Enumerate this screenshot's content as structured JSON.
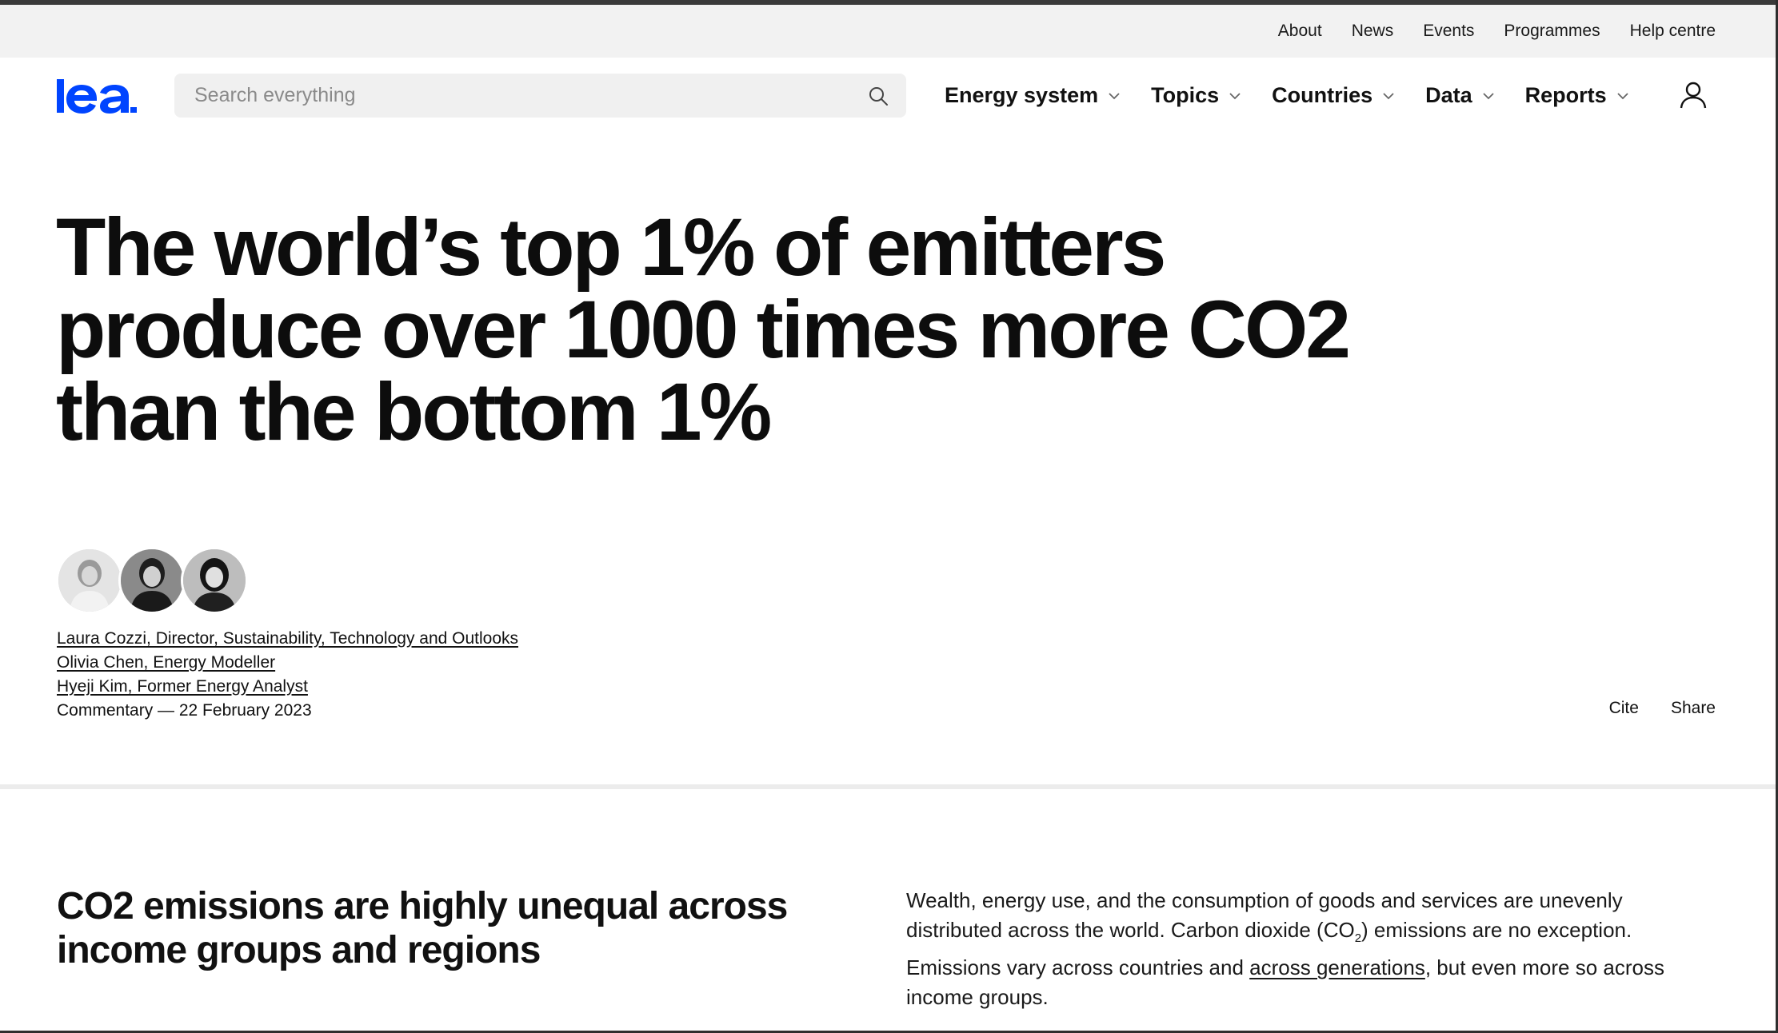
{
  "utility_nav": {
    "items": [
      "About",
      "News",
      "Events",
      "Programmes",
      "Help centre"
    ]
  },
  "header": {
    "logo_text": "iea",
    "search": {
      "placeholder": "Search everything",
      "value": ""
    },
    "nav": [
      "Energy system",
      "Topics",
      "Countries",
      "Data",
      "Reports"
    ]
  },
  "article": {
    "title": "The world’s top 1% of emitters produce over 1000 times more CO2 than the bottom 1%",
    "authors": [
      "Laura Cozzi, Director, Sustainability, Technology and Outlooks",
      "Olivia Chen, Energy Modeller",
      "Hyeji Kim, Former Energy Analyst"
    ],
    "meta": "Commentary — 22 February 2023",
    "actions": {
      "cite": "Cite",
      "share": "Share"
    }
  },
  "section": {
    "heading": "CO2 emissions are highly unequal across income groups and regions",
    "body_part1": "Wealth, energy use, and the consumption of goods and services are unevenly distributed across the world. Carbon dioxide (CO",
    "body_sub": "2",
    "body_part2": ") emissions are no exception. Emissions vary across countries and ",
    "body_link": "across generations",
    "body_part3": ", but even more so across income groups."
  },
  "colors": {
    "brand_blue": "#0044ff",
    "utility_bar_bg": "#f2f2f2",
    "search_bg": "#f0f0f0",
    "text": "#111111"
  },
  "icons": {
    "search": "search-icon",
    "chevron": "chevron-down-icon",
    "account": "user-account-icon"
  }
}
